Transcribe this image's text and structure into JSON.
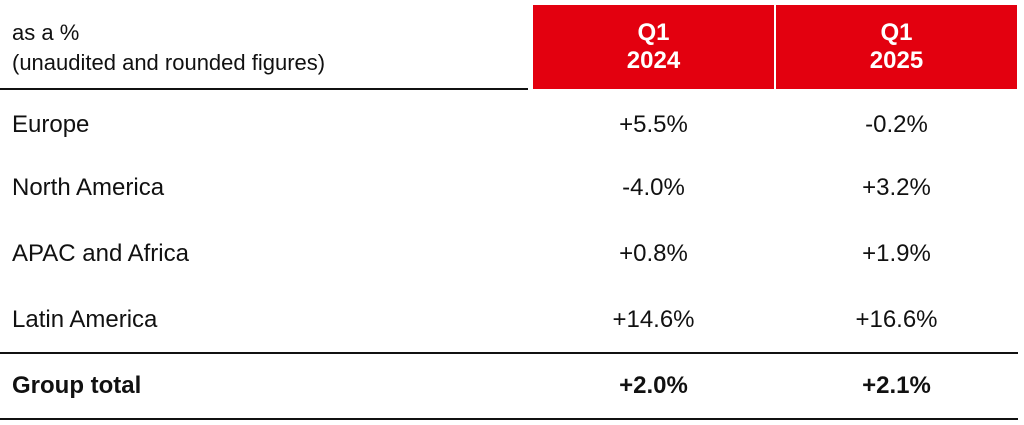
{
  "header": {
    "label_line1": "as a %",
    "label_line2": "(unaudited and rounded figures)",
    "columns": [
      {
        "line1": "Q1",
        "line2": "2024"
      },
      {
        "line1": "Q1",
        "line2": "2025"
      }
    ],
    "accent_color": "#e3000f"
  },
  "rows": [
    {
      "label": "Europe",
      "q1_2024": "+5.5%",
      "q1_2025": "-0.2%"
    },
    {
      "label": "North America",
      "q1_2024": "-4.0%",
      "q1_2025": "+3.2%"
    },
    {
      "label": "APAC and Africa",
      "q1_2024": "+0.8%",
      "q1_2025": "+1.9%"
    },
    {
      "label": "Latin America",
      "q1_2024": "+14.6%",
      "q1_2025": "+16.6%"
    }
  ],
  "total": {
    "label": "Group total",
    "q1_2024": "+2.0%",
    "q1_2025": "+2.1%"
  }
}
